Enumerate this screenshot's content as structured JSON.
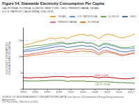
{
  "chart_data": {
    "type": "line",
    "title": "Figure 54. Statewide Electricity Consumption Per Capita",
    "subtitle": "CALIFORNIA, FLORIDA, ILLINOIS, NEW YORK, OHIO, PENNSYLVANIA, TEXAS,\n& U.S. PATROST CALIFORNIA, 1990-2018",
    "ylabel": "ELECTRICITY CONSUMPTION\n(THOUSAND KWH PER CAPITA)",
    "source": "SOURCE: US CALIFORNIA ENERGY CONSUMPTION PER CAPITA. Data Sources: US Department of Energy, Energy Information Administration,\nU.S. Percentrons. 1990-01-01 to 2018.",
    "x": [
      1990,
      1991,
      1992,
      1993,
      1994,
      1995,
      1996,
      1997,
      1998,
      1999,
      2000,
      2001,
      2002,
      2003,
      2004,
      2005,
      2006,
      2007,
      2008,
      2009,
      2010,
      2011,
      2012,
      2013,
      2014,
      2015,
      2016,
      2017,
      2018
    ],
    "series": [
      {
        "name": "TEXAS",
        "color": "#f4a028",
        "values": [
          13.5,
          13.8,
          14.0,
          14.5,
          14.8,
          15.0,
          15.5,
          15.8,
          15.5,
          15.8,
          16.0,
          15.5,
          16.2,
          16.5,
          16.8,
          17.0,
          16.5,
          16.8,
          16.2,
          15.5,
          16.5,
          17.0,
          16.8,
          16.5,
          16.0,
          15.8,
          16.2,
          16.5,
          17.2
        ]
      },
      {
        "name": "U.S. PATROS EAI",
        "color": "#5b9bd5",
        "values": [
          12.0,
          12.2,
          12.4,
          12.6,
          12.8,
          13.0,
          13.3,
          13.5,
          13.7,
          14.0,
          14.2,
          13.8,
          14.0,
          14.2,
          14.4,
          14.5,
          14.2,
          14.3,
          13.8,
          13.0,
          13.8,
          13.8,
          13.5,
          13.2,
          12.8,
          12.5,
          12.5,
          12.5,
          12.7
        ]
      },
      {
        "name": "ILLINOIS",
        "color": "#70ad47",
        "values": [
          12.8,
          13.0,
          13.2,
          13.4,
          13.5,
          13.6,
          13.8,
          14.0,
          14.2,
          14.4,
          14.5,
          14.0,
          14.2,
          14.3,
          14.5,
          14.5,
          14.2,
          14.3,
          13.8,
          13.2,
          14.0,
          14.2,
          13.8,
          13.5,
          13.0,
          12.8,
          12.8,
          13.0,
          13.2
        ]
      },
      {
        "name": "OHIO",
        "color": "#4472c4",
        "values": [
          11.5,
          11.7,
          11.8,
          12.0,
          12.2,
          12.4,
          12.6,
          12.8,
          13.0,
          13.2,
          13.3,
          12.8,
          13.0,
          13.2,
          13.4,
          13.5,
          13.2,
          13.3,
          12.8,
          12.0,
          12.8,
          13.0,
          12.5,
          12.2,
          11.8,
          11.5,
          11.5,
          11.8,
          12.0
        ]
      },
      {
        "name": "PENNSYLVANIA",
        "color": "#d9727f",
        "values": [
          10.5,
          10.7,
          10.8,
          11.0,
          11.2,
          11.4,
          11.6,
          11.8,
          12.0,
          12.2,
          12.3,
          11.8,
          12.0,
          12.2,
          12.4,
          12.5,
          12.2,
          12.3,
          11.8,
          11.0,
          11.8,
          12.0,
          11.5,
          11.2,
          10.8,
          10.5,
          10.5,
          10.8,
          11.0
        ]
      },
      {
        "name": "FLORIDA",
        "color": "#ed7d31",
        "values": [
          10.0,
          10.2,
          10.4,
          10.5,
          10.6,
          10.8,
          11.0,
          11.2,
          11.4,
          11.5,
          11.6,
          11.2,
          11.4,
          11.5,
          11.6,
          11.8,
          11.5,
          11.6,
          11.2,
          10.5,
          11.2,
          11.5,
          11.2,
          11.0,
          10.5,
          10.3,
          10.8,
          11.0,
          11.5
        ]
      },
      {
        "name": "NEW YORK",
        "color": "#c00000",
        "values": [
          3.5,
          3.4,
          3.4,
          3.5,
          3.5,
          3.5,
          3.6,
          3.7,
          3.8,
          3.8,
          3.8,
          3.6,
          3.7,
          3.7,
          3.7,
          3.8,
          3.7,
          3.8,
          3.6,
          3.4,
          3.6,
          3.6,
          3.5,
          3.4,
          3.2,
          3.1,
          3.1,
          3.2,
          3.4
        ]
      },
      {
        "name": "CALIFORNIA",
        "color": "#548235",
        "values": [
          2.5,
          2.4,
          2.4,
          2.4,
          2.4,
          2.5,
          2.5,
          2.6,
          2.6,
          2.6,
          2.6,
          2.3,
          2.4,
          2.4,
          2.4,
          2.4,
          2.3,
          2.3,
          2.2,
          2.1,
          2.2,
          2.2,
          2.1,
          2.0,
          1.9,
          1.9,
          1.8,
          1.8,
          1.7
        ]
      }
    ],
    "annotations": [
      {
        "text": "NEW YORK",
        "x": 2008,
        "y": 4.1,
        "color": "#c00000"
      },
      {
        "text": "CALIFORNIA",
        "x": 2008,
        "y": 1.4,
        "color": "#548235"
      }
    ],
    "xlim": [
      1990,
      2018
    ],
    "xticks": [
      1990,
      1993,
      1996,
      1999,
      2002,
      2005,
      2008,
      2011,
      2014,
      2017
    ],
    "ylim": [
      0,
      19
    ],
    "yticks": [
      0,
      5,
      10,
      15
    ],
    "grid": true,
    "legend": "upper right"
  }
}
